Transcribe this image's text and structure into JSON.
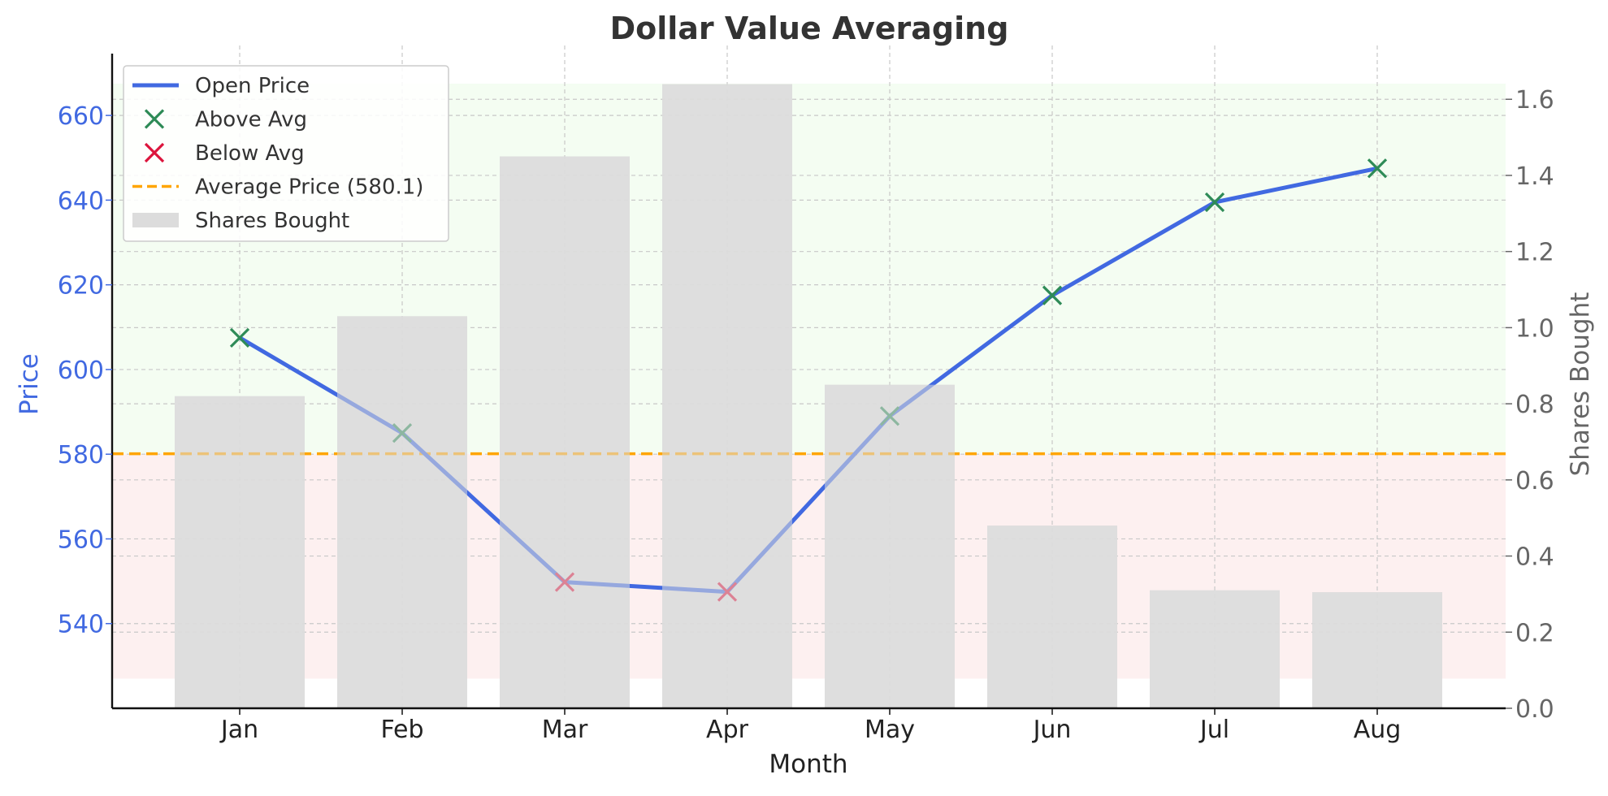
{
  "chart_data": {
    "type": "line",
    "title": "Dollar Value Averaging",
    "xlabel": "Month",
    "ylabel": "Price",
    "y2label": "Shares Bought",
    "categories": [
      "Jan",
      "Feb",
      "Mar",
      "Apr",
      "May",
      "Jun",
      "Jul",
      "Aug"
    ],
    "ylim": [
      520.0,
      674.6
    ],
    "y2lim": [
      0.0,
      1.72
    ],
    "yticks": [
      540,
      560,
      580,
      600,
      620,
      640,
      660
    ],
    "y2ticks": [
      "0.0",
      "0.2",
      "0.4",
      "0.6",
      "0.8",
      "1.0",
      "1.2",
      "1.4",
      "1.6"
    ],
    "average_price": 580.1,
    "above_band": [
      580.1,
      667.5
    ],
    "below_band": [
      527.0,
      580.1
    ],
    "series": [
      {
        "name": "Open Price",
        "axis": "left",
        "type": "line",
        "color": "#4169e1",
        "values": [
          607.5,
          585.0,
          549.8,
          547.5,
          589.0,
          617.5,
          639.5,
          647.5
        ]
      },
      {
        "name": "Shares Bought",
        "axis": "right",
        "type": "bar",
        "color": "#dcdcdc",
        "values": [
          0.82,
          1.03,
          1.45,
          1.64,
          0.85,
          0.48,
          0.31,
          0.305
        ]
      }
    ],
    "markers": {
      "above_color": "#2e8b57",
      "below_color": "#dc143c"
    },
    "legend": {
      "position": "top-left",
      "items": [
        {
          "label": "Open Price",
          "kind": "line",
          "color": "#4169e1"
        },
        {
          "label": "Above Avg",
          "kind": "x",
          "color": "#2e8b57"
        },
        {
          "label": "Below Avg",
          "kind": "x",
          "color": "#dc143c"
        },
        {
          "label": "Average Price (580.1)",
          "kind": "dash",
          "color": "#ffa500"
        },
        {
          "label": "Shares Bought",
          "kind": "bar",
          "color": "#dcdcdc"
        }
      ]
    },
    "grid": true
  }
}
